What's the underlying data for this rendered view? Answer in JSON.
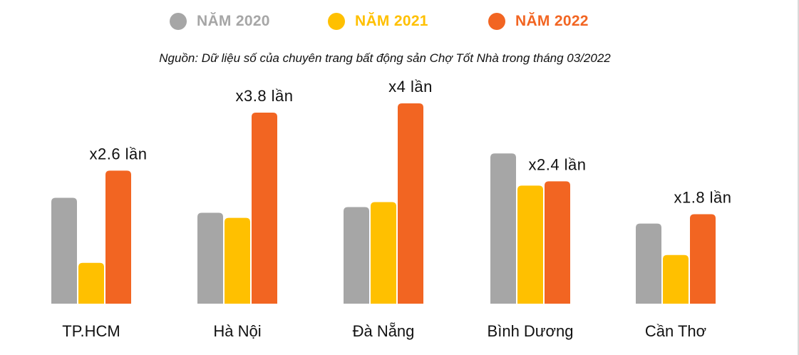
{
  "legend": [
    {
      "label": "NĂM 2020",
      "color": "#A6A6A6"
    },
    {
      "label": "NĂM 2021",
      "color": "#FFC000"
    },
    {
      "label": "NĂM 2022",
      "color": "#F26522"
    }
  ],
  "source_note": "Nguồn: Dữ liệu số của chuyên trang bất động sản Chợ Tốt Nhà trong tháng 03/2022",
  "chart_data": {
    "type": "bar",
    "title": "",
    "xlabel": "",
    "ylabel": "",
    "grid": false,
    "legend_position": "top",
    "categories": [
      "TP.HCM",
      "Hà Nội",
      "Đà Nẵng",
      "Bình Dương",
      "Cần Thơ"
    ],
    "series": [
      {
        "name": "NĂM 2020",
        "color": "#A6A6A6",
        "values": [
          148,
          127,
          135,
          210,
          112
        ]
      },
      {
        "name": "NĂM 2021",
        "color": "#FFC000",
        "values": [
          57,
          120,
          142,
          165,
          68
        ]
      },
      {
        "name": "NĂM 2022",
        "color": "#F26522",
        "values": [
          186,
          267,
          280,
          171,
          125
        ]
      }
    ],
    "annotations": [
      "x2.6 lần",
      "x3.8 lần",
      "x4 lần",
      "x2.4 lần",
      "x1.8 lần"
    ],
    "ylim": [
      0,
      280
    ]
  }
}
